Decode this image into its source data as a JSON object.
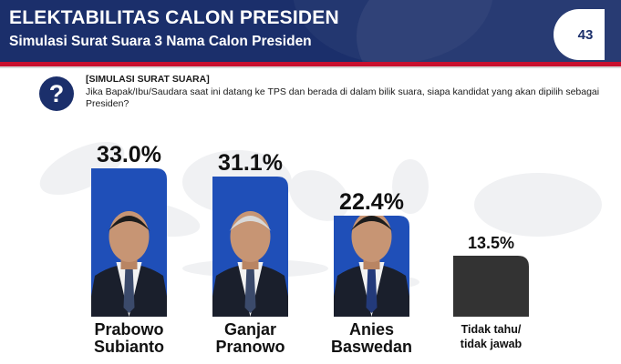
{
  "header": {
    "title": "ELEKTABILITAS CALON PRESIDEN",
    "subtitle": "Simulasi Surat Suara 3 Nama Calon Presiden",
    "page_number": "43"
  },
  "question": {
    "icon": "question-mark-icon",
    "label": "[SIMULASI SURAT SUARA]",
    "text": "Jika Bapak/Ibu/Saudara saat ini datang ke TPS dan berada di dalam bilik suara, siapa kandidat yang akan dipilih sebagai Presiden?"
  },
  "colors": {
    "header_bg": "#1b2f6b",
    "accent_red": "#c8102e",
    "candidate_bar": "#1f4fb8",
    "undecided_bar": "#333333"
  },
  "chart_data": {
    "type": "bar",
    "categories": [
      "Prabowo Subianto",
      "Ganjar Pranowo",
      "Anies Baswedan",
      "Tidak tahu/ tidak jawab"
    ],
    "values": [
      33.0,
      31.1,
      22.4,
      13.5
    ],
    "value_labels": [
      "33.0%",
      "31.1%",
      "22.4%",
      "13.5%"
    ],
    "name_lines": [
      [
        "Prabowo",
        "Subianto"
      ],
      [
        "Ganjar",
        "Pranowo"
      ],
      [
        "Anies",
        "Baswedan"
      ],
      [
        "Tidak tahu/",
        "tidak jawab"
      ]
    ],
    "ylim": [
      0,
      33
    ],
    "title": "",
    "xlabel": "",
    "ylabel": "",
    "grid": false
  }
}
